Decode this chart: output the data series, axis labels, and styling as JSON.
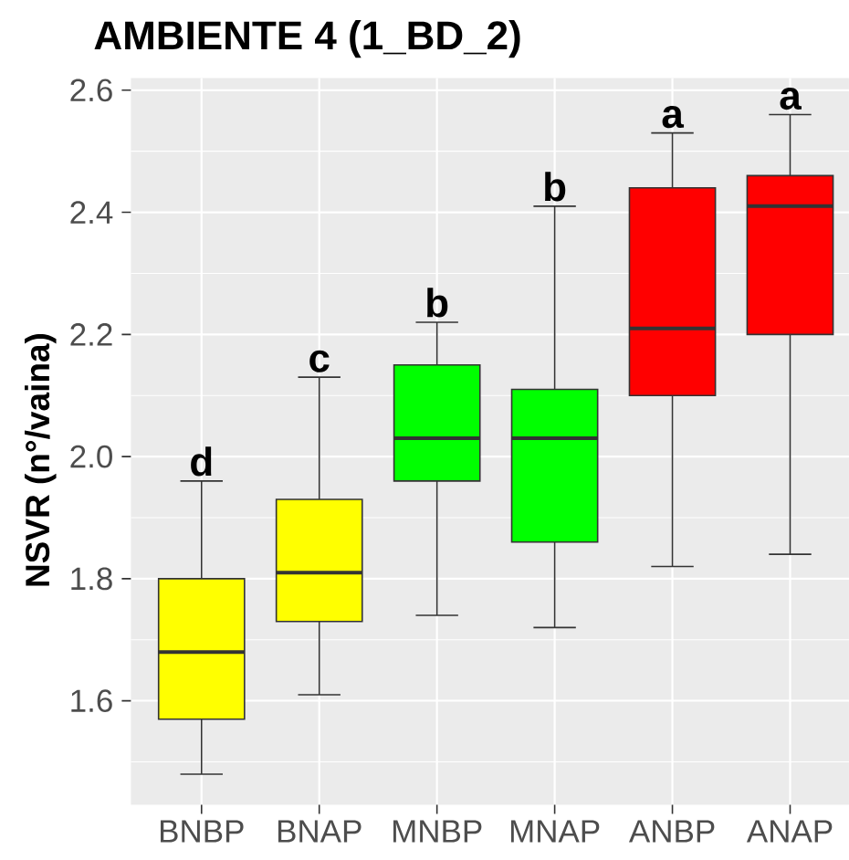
{
  "chart_data": {
    "type": "box",
    "title": "AMBIENTE 4 (1_BD_2)",
    "ylabel": "NSVR (n°/vaina)",
    "categories": [
      "BNBP",
      "BNAP",
      "MNBP",
      "MNAP",
      "ANBP",
      "ANAP"
    ],
    "boxes": [
      {
        "low": 1.48,
        "q1": 1.57,
        "median": 1.68,
        "q3": 1.8,
        "high": 1.96
      },
      {
        "low": 1.61,
        "q1": 1.73,
        "median": 1.81,
        "q3": 1.93,
        "high": 2.13
      },
      {
        "low": 1.74,
        "q1": 1.96,
        "median": 2.03,
        "q3": 2.15,
        "high": 2.22
      },
      {
        "low": 1.72,
        "q1": 1.86,
        "median": 2.03,
        "q3": 2.11,
        "high": 2.41
      },
      {
        "low": 1.82,
        "q1": 2.1,
        "median": 2.21,
        "q3": 2.44,
        "high": 2.53
      },
      {
        "low": 1.84,
        "q1": 2.2,
        "median": 2.41,
        "q3": 2.46,
        "high": 2.56
      }
    ],
    "colors": [
      "#ffff00",
      "#ffff00",
      "#00ff00",
      "#00ff00",
      "#ff0000",
      "#ff0000"
    ],
    "ylim": [
      1.43,
      2.62
    ],
    "yticks": [
      1.6,
      1.8,
      {
        "value": 2,
        "label": "2.0"
      },
      2.2,
      2.4,
      2.6
    ],
    "grid": true,
    "annotations": [
      "d",
      "c",
      "b",
      "b",
      "a",
      "a"
    ]
  }
}
